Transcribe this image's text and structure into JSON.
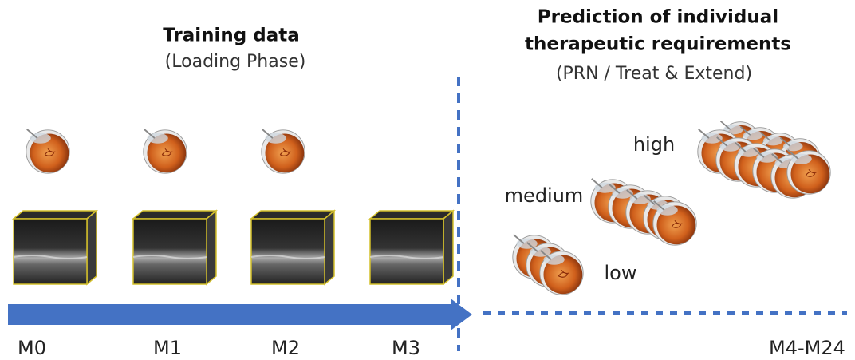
{
  "training": {
    "title": "Training data",
    "subtitle": "(Loading Phase)"
  },
  "prediction": {
    "title_lines": [
      "Prediction of individual",
      "therapeutic requirements"
    ],
    "subtitle": "(PRN / Treat & Extend)"
  },
  "levels": [
    "high",
    "medium",
    "low"
  ],
  "timepoints": [
    "M0",
    "M1",
    "M2",
    "M3",
    "M4-M24"
  ]
}
